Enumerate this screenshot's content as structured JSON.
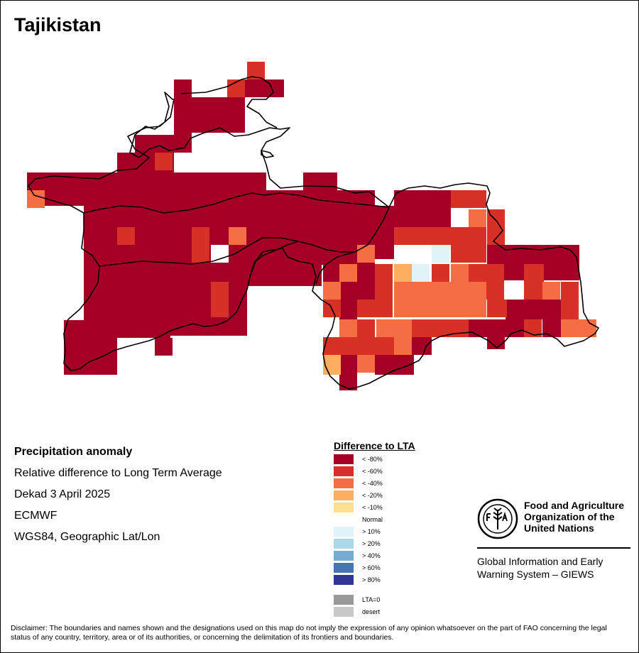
{
  "title": "Tajikistan",
  "meta": {
    "heading": "Precipitation anomaly",
    "line1": "Relative difference to Long Term Average",
    "line2": "Dekad 3 April 2025",
    "line3": "ECMWF",
    "line4": "WGS84, Geographic Lat/Lon"
  },
  "legend": {
    "title": "Difference to LTA",
    "items": [
      {
        "label": "< -80%",
        "color": "#a50026"
      },
      {
        "label": "< -60%",
        "color": "#d73027"
      },
      {
        "label": "< -40%",
        "color": "#f46d43"
      },
      {
        "label": "< -20%",
        "color": "#fdae61"
      },
      {
        "label": "< -10%",
        "color": "#fee090"
      },
      {
        "label": "Normal",
        "color": "#ffffff"
      },
      {
        "label": "> 10%",
        "color": "#e0f3f8"
      },
      {
        "label": "> 20%",
        "color": "#abd9e9"
      },
      {
        "label": "> 40%",
        "color": "#74add1"
      },
      {
        "label": "> 60%",
        "color": "#4575b4"
      },
      {
        "label": "> 80%",
        "color": "#313695"
      },
      {
        "label": "LTA=0",
        "color": "#999999"
      },
      {
        "label": "desert",
        "color": "#c8c8c8"
      }
    ]
  },
  "logo": {
    "org_line1": "Food and Agriculture",
    "org_line2": "Organization of the",
    "org_line3": "United Nations",
    "system_line1": "Global Information and Early",
    "system_line2": "Warning System – GIEWS"
  },
  "disclaimer": "Disclaimer: The boundaries and names shown and the designations used on this map do not imply the expression of any opinion whatsoever on the part of FAO concerning the legal status of any country, territory, area or of its authorities, or concerning the delimitation of its frontiers and boundaries."
}
